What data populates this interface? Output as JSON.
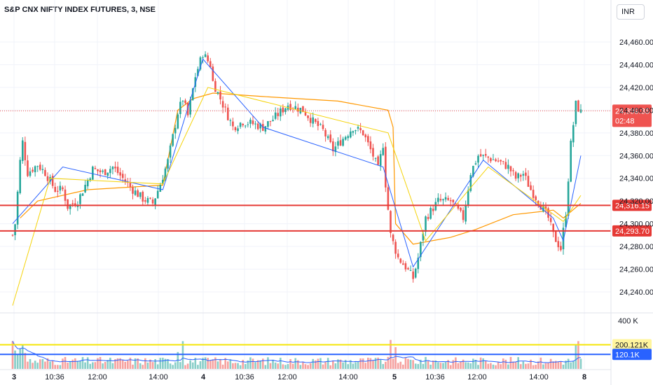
{
  "header": {
    "title": "S&P CNX NIFTY INDEX FUTURES, 3, NSE",
    "currency": "INR"
  },
  "colors": {
    "up": "#26a69a",
    "down": "#ef5350",
    "ma_fast": "#2962ff",
    "ma_slow": "#f5d30a",
    "vwap": "#ff9800",
    "level_line": "#e53935",
    "vol_avg_line": "#2962ff",
    "vol_level_line": "#f5e50a"
  },
  "price_scale": {
    "ticks": [
      "24,460.00",
      "24,440.00",
      "24,420.00",
      "24,400.00",
      "24,380.00",
      "24,360.00",
      "24,340.00",
      "24,320.00",
      "24,300.00",
      "24,280.00",
      "24,260.00",
      "24,240.00"
    ],
    "last_price": "24,399.35",
    "countdown": "02:48",
    "levels": [
      "24,316.15",
      "24,293.70"
    ]
  },
  "volume_scale": {
    "top_tick": "400 K",
    "labels": [
      "200.121K",
      "120.1K"
    ]
  },
  "time_axis": {
    "labels": [
      "3",
      "10:36",
      "12:00",
      "14:00",
      "4",
      "10:36",
      "12:00",
      "14:00",
      "5",
      "10:36",
      "12:00",
      "14:00",
      "8"
    ]
  },
  "chart_data": {
    "type": "candlestick",
    "title": "S&P CNX NIFTY INDEX FUTURES, 3, NSE",
    "ylim": [
      24225,
      24475
    ],
    "volume_ylim": [
      0,
      420000
    ],
    "x": [
      "3",
      "10:36",
      "12:00",
      "14:00",
      "4",
      "10:36",
      "12:00",
      "14:00",
      "5",
      "10:36",
      "12:00",
      "14:00",
      "8"
    ],
    "price_keypoints": [
      [
        0,
        24290
      ],
      [
        1,
        24300
      ],
      [
        3,
        24355
      ],
      [
        4,
        24372
      ],
      [
        6,
        24345
      ],
      [
        10,
        24352
      ],
      [
        13,
        24345
      ],
      [
        17,
        24330
      ],
      [
        20,
        24330
      ],
      [
        22,
        24315
      ],
      [
        26,
        24320
      ],
      [
        32,
        24348
      ],
      [
        36,
        24345
      ],
      [
        40,
        24350
      ],
      [
        44,
        24340
      ],
      [
        48,
        24330
      ],
      [
        52,
        24322
      ],
      [
        56,
        24318
      ],
      [
        59,
        24335
      ],
      [
        62,
        24355
      ],
      [
        66,
        24398
      ],
      [
        68,
        24410
      ],
      [
        70,
        24395
      ],
      [
        73,
        24430
      ],
      [
        76,
        24450
      ],
      [
        79,
        24440
      ],
      [
        80,
        24425
      ],
      [
        84,
        24405
      ],
      [
        88,
        24385
      ],
      [
        92,
        24390
      ],
      [
        96,
        24388
      ],
      [
        100,
        24385
      ],
      [
        104,
        24392
      ],
      [
        110,
        24405
      ],
      [
        116,
        24400
      ],
      [
        120,
        24390
      ],
      [
        124,
        24382
      ],
      [
        128,
        24365
      ],
      [
        132,
        24375
      ],
      [
        136,
        24385
      ],
      [
        140,
        24380
      ],
      [
        144,
        24360
      ],
      [
        146,
        24348
      ],
      [
        148,
        24370
      ],
      [
        149,
        24335
      ],
      [
        151,
        24290
      ],
      [
        154,
        24270
      ],
      [
        157,
        24262
      ],
      [
        160,
        24252
      ],
      [
        162,
        24270
      ],
      [
        165,
        24305
      ],
      [
        170,
        24320
      ],
      [
        175,
        24320
      ],
      [
        180,
        24305
      ],
      [
        183,
        24345
      ],
      [
        186,
        24360
      ],
      [
        190,
        24358
      ],
      [
        194,
        24355
      ],
      [
        198,
        24350
      ],
      [
        201,
        24340
      ],
      [
        204,
        24344
      ],
      [
        207,
        24330
      ],
      [
        210,
        24320
      ],
      [
        214,
        24305
      ],
      [
        216,
        24290
      ],
      [
        219,
        24278
      ],
      [
        221,
        24310
      ],
      [
        223,
        24370
      ],
      [
        225,
        24405
      ],
      [
        227,
        24398
      ]
    ],
    "series": [
      {
        "name": "MA fast",
        "points": [
          [
            0,
            24300
          ],
          [
            20,
            24350
          ],
          [
            60,
            24330
          ],
          [
            76,
            24445
          ],
          [
            100,
            24385
          ],
          [
            148,
            24350
          ],
          [
            160,
            24262
          ],
          [
            188,
            24356
          ],
          [
            216,
            24305
          ],
          [
            220,
            24285
          ],
          [
            227,
            24360
          ]
        ]
      },
      {
        "name": "MA slow",
        "points": [
          [
            0,
            24228
          ],
          [
            15,
            24340
          ],
          [
            60,
            24335
          ],
          [
            78,
            24420
          ],
          [
            150,
            24380
          ],
          [
            165,
            24285
          ],
          [
            190,
            24350
          ],
          [
            220,
            24302
          ],
          [
            227,
            24325
          ]
        ]
      },
      {
        "name": "VWAP",
        "points": [
          [
            3,
            24305
          ],
          [
            10,
            24320
          ],
          [
            30,
            24330
          ],
          [
            60,
            24334
          ],
          [
            66,
            24400
          ],
          [
            72,
            24410
          ],
          [
            80,
            24415
          ],
          [
            100,
            24412
          ],
          [
            130,
            24408
          ],
          [
            150,
            24400
          ],
          [
            152,
            24385
          ],
          [
            153,
            24300
          ],
          [
            160,
            24282
          ],
          [
            175,
            24288
          ],
          [
            185,
            24295
          ],
          [
            200,
            24308
          ],
          [
            216,
            24312
          ],
          [
            220,
            24305
          ],
          [
            227,
            24318
          ]
        ]
      }
    ],
    "horizontal_levels": [
      24316.15,
      24293.7
    ],
    "volume_levels": [
      200121,
      120100
    ]
  }
}
